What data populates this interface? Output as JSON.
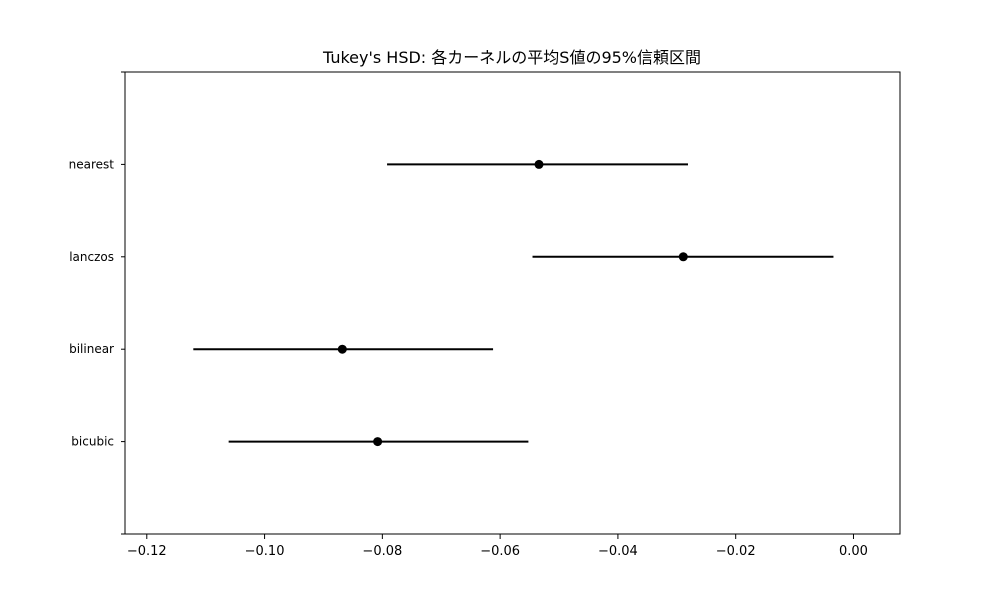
{
  "chart_data": {
    "type": "errorbar",
    "title": "Tukey's HSD: 各カーネルの平均S値の95%信頼区間",
    "xlabel": "",
    "ylabel": "",
    "xlim": [
      -0.1237,
      0.0079
    ],
    "x_ticks": [
      -0.12,
      -0.1,
      -0.08,
      -0.06,
      -0.04,
      -0.02,
      0.0
    ],
    "x_tick_labels": [
      "−0.12",
      "−0.10",
      "−0.08",
      "−0.06",
      "−0.04",
      "−0.02",
      "0.00"
    ],
    "categories": [
      "bicubic",
      "bilinear",
      "lanczos",
      "nearest"
    ],
    "series": [
      {
        "points": [
          {
            "category": "nearest",
            "mean": -0.0534,
            "lower": -0.0792,
            "upper": -0.0281
          },
          {
            "category": "lanczos",
            "mean": -0.0289,
            "lower": -0.0545,
            "upper": -0.0034
          },
          {
            "category": "bilinear",
            "mean": -0.0868,
            "lower": -0.1121,
            "upper": -0.0612
          },
          {
            "category": "bicubic",
            "mean": -0.0808,
            "lower": -0.1061,
            "upper": -0.0552
          }
        ]
      }
    ],
    "grid": false,
    "colors": {
      "marker": "#000000",
      "line": "#000000",
      "axis": "#000000"
    }
  }
}
